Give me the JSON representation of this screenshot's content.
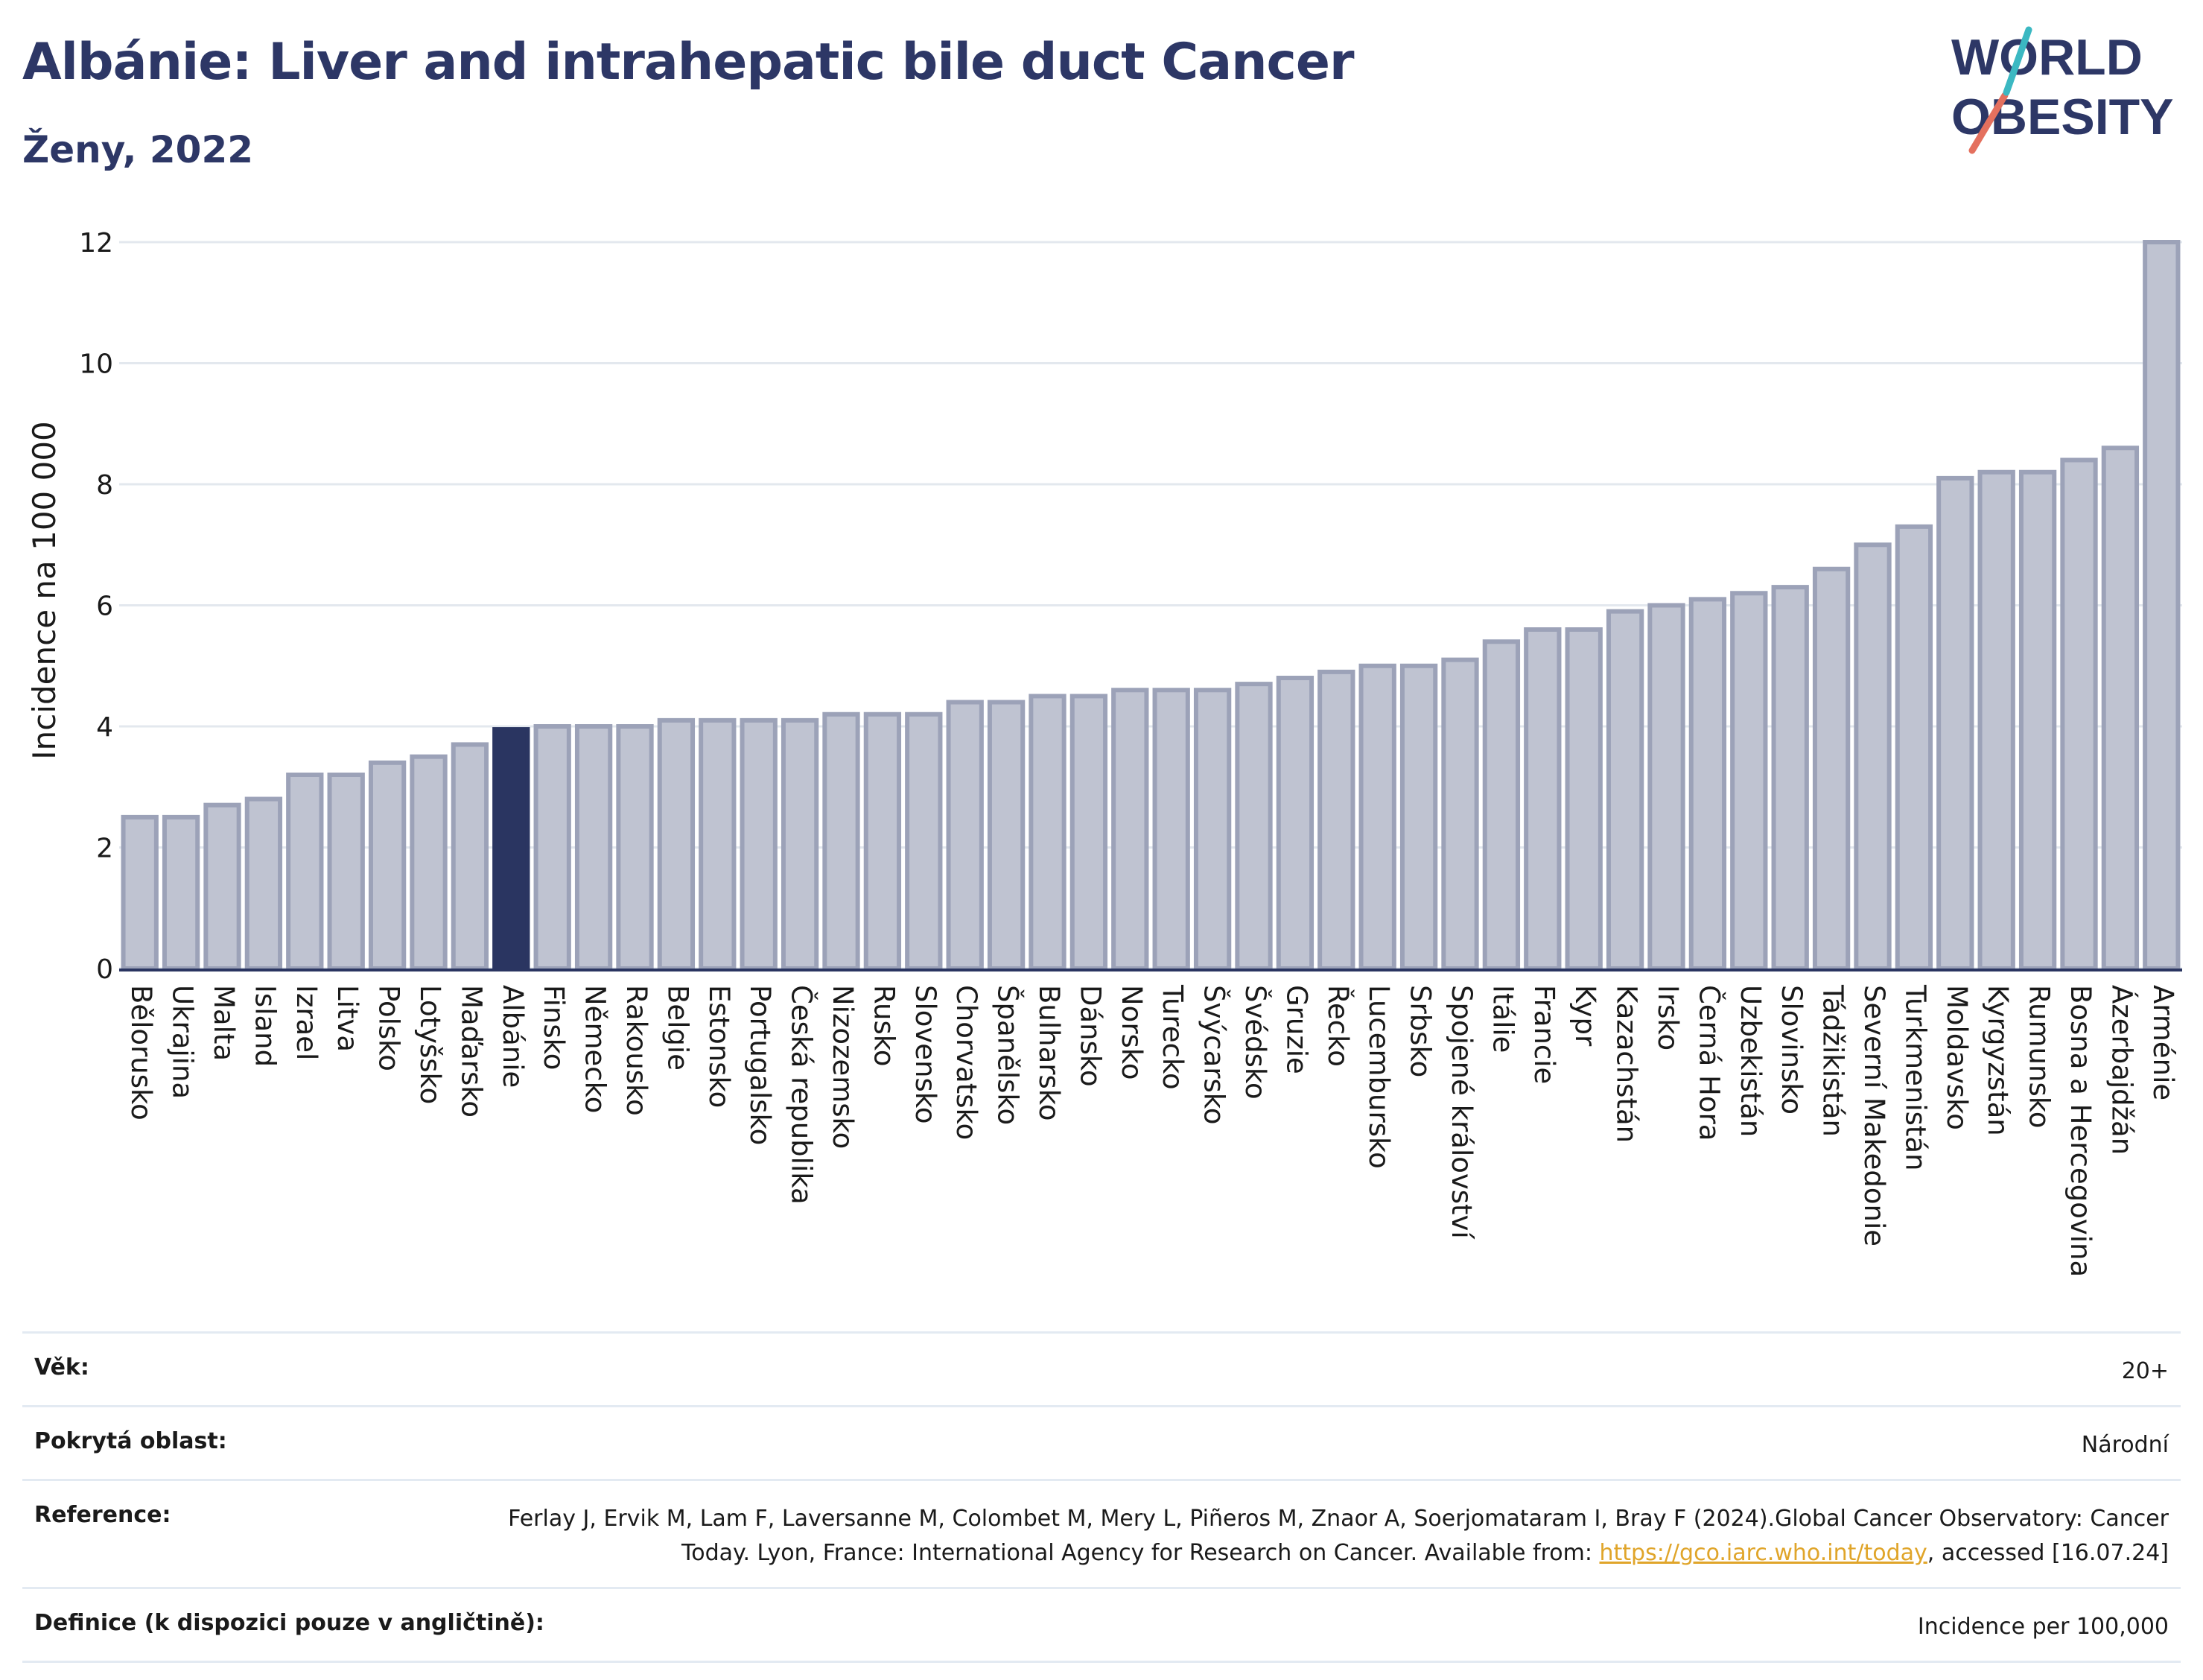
{
  "title": "Albánie: Liver and intrahepatic bile duct Cancer",
  "subtitle": "Ženy, 2022",
  "logo": {
    "line1": "WORLD",
    "line2": "OBESITY"
  },
  "chart_data": {
    "type": "bar",
    "ylabel": "Incidence na 100 000",
    "ylim": [
      0,
      12
    ],
    "yticks": [
      0,
      2,
      4,
      6,
      8,
      10,
      12
    ],
    "grid": true,
    "highlight": "Albánie",
    "colors": {
      "bar": "#bfc3d1",
      "bar_edge": "#9ca2b8",
      "highlight": "#2a3561",
      "grid": "#e3e8ee",
      "axis": "#2a3561"
    },
    "categories": [
      "Bělorusko",
      "Ukrajina",
      "Malta",
      "Island",
      "Izrael",
      "Litva",
      "Polsko",
      "Lotyšsko",
      "Maďarsko",
      "Albánie",
      "Finsko",
      "Německo",
      "Rakousko",
      "Belgie",
      "Estonsko",
      "Portugalsko",
      "Česká republika",
      "Nizozemsko",
      "Rusko",
      "Slovensko",
      "Chorvatsko",
      "Španělsko",
      "Bulharsko",
      "Dánsko",
      "Norsko",
      "Turecko",
      "Švýcarsko",
      "Švédsko",
      "Gruzie",
      "Řecko",
      "Lucembursko",
      "Srbsko",
      "Spojené království",
      "Itálie",
      "Francie",
      "Kypr",
      "Kazachstán",
      "Irsko",
      "Černá Hora",
      "Uzbekistán",
      "Slovinsko",
      "Tádžikistán",
      "Severní Makedonie",
      "Turkmenistán",
      "Moldavsko",
      "Kyrgyzstán",
      "Rumunsko",
      "Bosna a Hercegovina",
      "Ázerbajdžán",
      "Arménie"
    ],
    "values": [
      2.5,
      2.5,
      2.7,
      2.8,
      3.2,
      3.2,
      3.4,
      3.5,
      3.7,
      3.95,
      4.0,
      4.0,
      4.0,
      4.1,
      4.1,
      4.1,
      4.1,
      4.2,
      4.2,
      4.2,
      4.4,
      4.4,
      4.5,
      4.5,
      4.6,
      4.6,
      4.6,
      4.7,
      4.8,
      4.9,
      5.0,
      5.0,
      5.1,
      5.4,
      5.6,
      5.6,
      5.9,
      6.0,
      6.1,
      6.2,
      6.3,
      6.6,
      7.0,
      7.3,
      8.1,
      8.2,
      8.2,
      8.4,
      8.6,
      12.0
    ]
  },
  "info": {
    "age": {
      "label": "Věk:",
      "value": "20+"
    },
    "area": {
      "label": "Pokrytá oblast:",
      "value": "Národní"
    },
    "reference": {
      "label": "Reference:",
      "text_before": "Ferlay J, Ervik M, Lam F, Laversanne M, Colombet M, Mery L, Piñeros M, Znaor A, Soerjomataram I, Bray F (2024).Global Cancer Observatory: Cancer Today. Lyon, France: International Agency for Research on Cancer. Available from: ",
      "link": "https://gco.iarc.who.int/today",
      "text_after": ", accessed [16.07.24]"
    },
    "definition": {
      "label": "Definice (k dispozici pouze v angličtině):",
      "value": "Incidence per 100,000"
    }
  }
}
